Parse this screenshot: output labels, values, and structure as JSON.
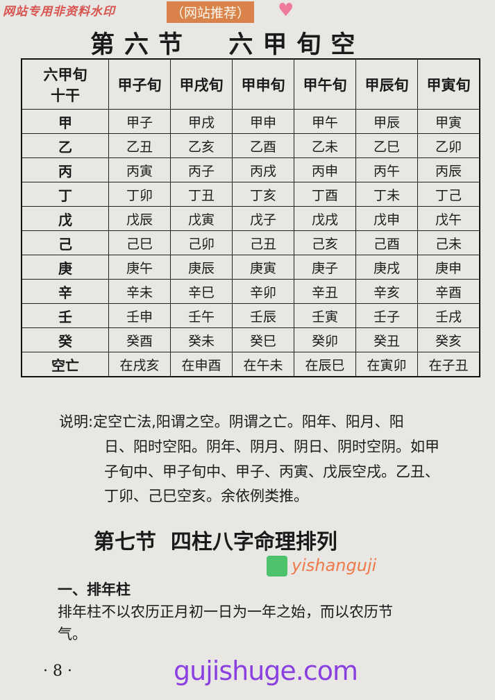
{
  "watermarks": {
    "top": "网站专用非资料水印",
    "recommend": "（网站推荐）",
    "site": "gujishuge.com",
    "site2": "yishanguji"
  },
  "title": "第六节  六甲旬空",
  "table": {
    "header": [
      "六甲旬\n十干",
      "甲子旬",
      "甲戌旬",
      "甲申旬",
      "甲午旬",
      "甲辰旬",
      "甲寅旬"
    ],
    "rows": [
      [
        "甲",
        "甲子",
        "甲戌",
        "甲申",
        "甲午",
        "甲辰",
        "甲寅"
      ],
      [
        "乙",
        "乙丑",
        "乙亥",
        "乙酉",
        "乙未",
        "乙巳",
        "乙卯"
      ],
      [
        "丙",
        "丙寅",
        "丙子",
        "丙戌",
        "丙申",
        "丙午",
        "丙辰"
      ],
      [
        "丁",
        "丁卯",
        "丁丑",
        "丁亥",
        "丁酉",
        "丁未",
        "丁己"
      ],
      [
        "戊",
        "戊辰",
        "戊寅",
        "戊子",
        "戊戌",
        "戊申",
        "戊午"
      ],
      [
        "己",
        "己巳",
        "己卯",
        "己丑",
        "己亥",
        "己酉",
        "己未"
      ],
      [
        "庚",
        "庚午",
        "庚辰",
        "庚寅",
        "庚子",
        "庚戌",
        "庚申"
      ],
      [
        "辛",
        "辛未",
        "辛巳",
        "辛卯",
        "辛丑",
        "辛亥",
        "辛酉"
      ],
      [
        "壬",
        "壬申",
        "壬午",
        "壬辰",
        "壬寅",
        "壬子",
        "壬戌"
      ],
      [
        "癸",
        "癸酉",
        "癸未",
        "癸巳",
        "癸卯",
        "癸丑",
        "癸亥"
      ],
      [
        "空亡",
        "在戌亥",
        "在申酉",
        "在午未",
        "在辰巳",
        "在寅卯",
        "在子丑"
      ]
    ]
  },
  "note": [
    "说明:定空亡法,阳谓之空。阴谓之亡。阳年、阳月、阳",
    "日、阳时空阳。阴年、阴月、阴日、阴时空阴。如甲",
    "子旬中、甲子旬中、甲子、丙寅、戊辰空戌。乙丑、",
    "丁卯、己巳空亥。余依例类推。"
  ],
  "section": "第七节  四柱八字命理排列",
  "subsection": "一、排年柱",
  "body": [
    "排年柱不以农历正月初一日为一年之始，而以农历节",
    "气。"
  ],
  "page_number": "· 8 ·"
}
